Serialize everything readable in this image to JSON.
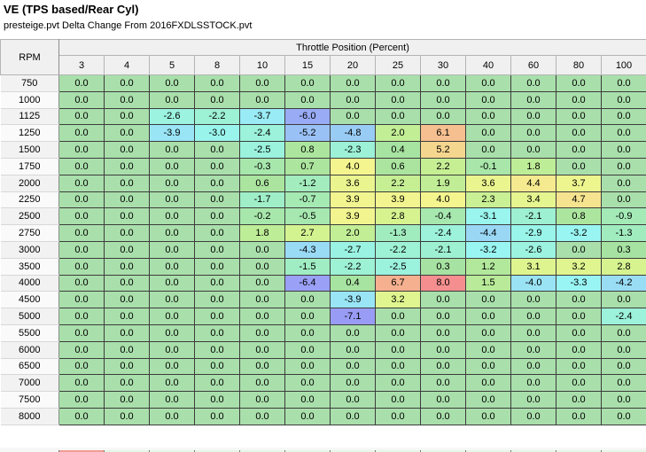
{
  "header": {
    "title": "VE (TPS based/Rear Cyl)",
    "subtitle": "presteige.pvt Delta Change From 2016FXDLSSTOCK.pvt"
  },
  "table": {
    "corner_label": "RPM",
    "group_label": "Throttle Position (Percent)",
    "columns": [
      "3",
      "4",
      "5",
      "8",
      "10",
      "15",
      "20",
      "25",
      "30",
      "40",
      "60",
      "80",
      "100"
    ],
    "rows": [
      {
        "rpm": "750",
        "values": [
          0.0,
          0.0,
          0.0,
          0.0,
          0.0,
          0.0,
          0.0,
          0.0,
          0.0,
          0.0,
          0.0,
          0.0,
          0.0
        ]
      },
      {
        "rpm": "1000",
        "values": [
          0.0,
          0.0,
          0.0,
          0.0,
          0.0,
          0.0,
          0.0,
          0.0,
          0.0,
          0.0,
          0.0,
          0.0,
          0.0
        ]
      },
      {
        "rpm": "1125",
        "values": [
          0.0,
          0.0,
          -2.6,
          -2.2,
          -3.7,
          -6.0,
          0.0,
          0.0,
          0.0,
          0.0,
          0.0,
          0.0,
          0.0
        ]
      },
      {
        "rpm": "1250",
        "values": [
          0.0,
          0.0,
          -3.9,
          -3.0,
          -2.4,
          -5.2,
          -4.8,
          2.0,
          6.1,
          0.0,
          0.0,
          0.0,
          0.0
        ]
      },
      {
        "rpm": "1500",
        "values": [
          0.0,
          0.0,
          0.0,
          0.0,
          -2.5,
          0.8,
          -2.3,
          0.4,
          5.2,
          0.0,
          0.0,
          0.0,
          0.0
        ]
      },
      {
        "rpm": "1750",
        "values": [
          0.0,
          0.0,
          0.0,
          0.0,
          -0.3,
          0.7,
          4.0,
          0.6,
          2.2,
          -0.1,
          1.8,
          0.0,
          0.0
        ]
      },
      {
        "rpm": "2000",
        "values": [
          0.0,
          0.0,
          0.0,
          0.0,
          0.6,
          -1.2,
          3.6,
          2.2,
          1.9,
          3.6,
          4.4,
          3.7,
          0.0
        ]
      },
      {
        "rpm": "2250",
        "values": [
          0.0,
          0.0,
          0.0,
          0.0,
          -1.7,
          -0.7,
          3.9,
          3.9,
          4.0,
          2.3,
          3.4,
          4.7,
          0.0
        ]
      },
      {
        "rpm": "2500",
        "values": [
          0.0,
          0.0,
          0.0,
          0.0,
          -0.2,
          -0.5,
          3.9,
          2.8,
          -0.4,
          -3.1,
          -2.1,
          0.8,
          -0.9
        ]
      },
      {
        "rpm": "2750",
        "values": [
          0.0,
          0.0,
          0.0,
          0.0,
          1.8,
          2.7,
          2.0,
          -1.3,
          -2.4,
          -4.4,
          -2.9,
          -3.2,
          -1.3
        ]
      },
      {
        "rpm": "3000",
        "values": [
          0.0,
          0.0,
          0.0,
          0.0,
          0.0,
          -4.3,
          -2.7,
          -2.2,
          -2.1,
          -3.2,
          -2.6,
          0.0,
          0.3
        ]
      },
      {
        "rpm": "3500",
        "values": [
          0.0,
          0.0,
          0.0,
          0.0,
          0.0,
          -1.5,
          -2.2,
          -2.5,
          0.3,
          1.2,
          3.1,
          3.2,
          2.8
        ]
      },
      {
        "rpm": "4000",
        "values": [
          0.0,
          0.0,
          0.0,
          0.0,
          0.0,
          -6.4,
          0.4,
          6.7,
          8.0,
          1.5,
          -4.0,
          -3.3,
          -4.2
        ]
      },
      {
        "rpm": "4500",
        "values": [
          0.0,
          0.0,
          0.0,
          0.0,
          0.0,
          0.0,
          -3.9,
          3.2,
          0.0,
          0.0,
          0.0,
          0.0,
          0.0
        ]
      },
      {
        "rpm": "5000",
        "values": [
          0.0,
          0.0,
          0.0,
          0.0,
          0.0,
          0.0,
          -7.1,
          0.0,
          0.0,
          0.0,
          0.0,
          0.0,
          -2.4
        ]
      },
      {
        "rpm": "5500",
        "values": [
          0.0,
          0.0,
          0.0,
          0.0,
          0.0,
          0.0,
          0.0,
          0.0,
          0.0,
          0.0,
          0.0,
          0.0,
          0.0
        ]
      },
      {
        "rpm": "6000",
        "values": [
          0.0,
          0.0,
          0.0,
          0.0,
          0.0,
          0.0,
          0.0,
          0.0,
          0.0,
          0.0,
          0.0,
          0.0,
          0.0
        ]
      },
      {
        "rpm": "6500",
        "values": [
          0.0,
          0.0,
          0.0,
          0.0,
          0.0,
          0.0,
          0.0,
          0.0,
          0.0,
          0.0,
          0.0,
          0.0,
          0.0
        ]
      },
      {
        "rpm": "7000",
        "values": [
          0.0,
          0.0,
          0.0,
          0.0,
          0.0,
          0.0,
          0.0,
          0.0,
          0.0,
          0.0,
          0.0,
          0.0,
          0.0
        ]
      },
      {
        "rpm": "7500",
        "values": [
          0.0,
          0.0,
          0.0,
          0.0,
          0.0,
          0.0,
          0.0,
          0.0,
          0.0,
          0.0,
          0.0,
          0.0,
          0.0
        ]
      },
      {
        "rpm": "8000",
        "values": [
          0.0,
          0.0,
          0.0,
          0.0,
          0.0,
          0.0,
          0.0,
          0.0,
          0.0,
          0.0,
          0.0,
          0.0,
          0.0
        ]
      }
    ],
    "colors": {
      "zero_cell": "#a9e2ad",
      "max_positive_cell": "#f29c9c",
      "max_negative_cell": "#9ba2f2",
      "header_bg": "#f0f0f0",
      "grid_border": "#3c3c3c"
    }
  }
}
